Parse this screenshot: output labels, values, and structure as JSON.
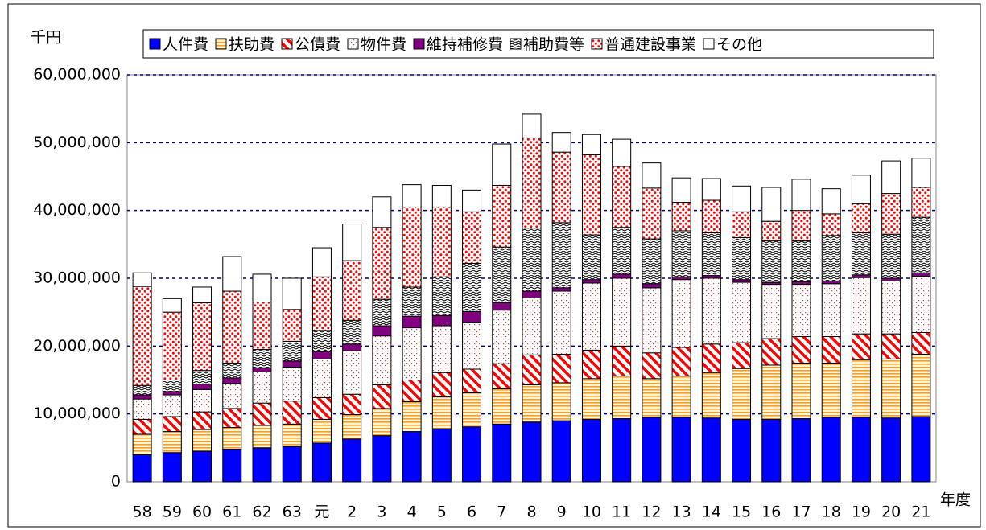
{
  "chart_data": {
    "type": "stacked-bar",
    "unit_label": "千円",
    "x_label": "年度",
    "categories": [
      "58",
      "59",
      "60",
      "61",
      "62",
      "63",
      "元",
      "2",
      "3",
      "4",
      "5",
      "6",
      "7",
      "8",
      "9",
      "10",
      "11",
      "12",
      "13",
      "14",
      "15",
      "16",
      "17",
      "18",
      "19",
      "20",
      "21"
    ],
    "ylim": [
      0,
      60000000
    ],
    "yticks": [
      {
        "value": 0,
        "label": "0"
      },
      {
        "value": 10000000,
        "label": "10,000,000"
      },
      {
        "value": 20000000,
        "label": "20,000,000"
      },
      {
        "value": 30000000,
        "label": "30,000,000"
      },
      {
        "value": 40000000,
        "label": "40,000,000"
      },
      {
        "value": 50000000,
        "label": "50,000,000"
      },
      {
        "value": 60000000,
        "label": "60,000,000"
      }
    ],
    "grid": true,
    "legend": "top",
    "series": [
      {
        "name": "人件費",
        "color": "#0000ff",
        "pattern": "solid",
        "values": [
          4000000,
          4300000,
          4500000,
          4800000,
          5000000,
          5200000,
          5700000,
          6300000,
          6800000,
          7400000,
          7800000,
          8100000,
          8500000,
          8800000,
          9000000,
          9200000,
          9300000,
          9500000,
          9500000,
          9400000,
          9200000,
          9200000,
          9300000,
          9500000,
          9500000,
          9400000,
          9600000
        ]
      },
      {
        "name": "扶助費",
        "color": "#f0a030",
        "pattern": "horizontal",
        "values": [
          3000000,
          3100000,
          3200000,
          3200000,
          3300000,
          3300000,
          3500000,
          3600000,
          4000000,
          4400000,
          4700000,
          5000000,
          5200000,
          5500000,
          5600000,
          6000000,
          6300000,
          5700000,
          6100000,
          6700000,
          7500000,
          8000000,
          8200000,
          8000000,
          8500000,
          8700000,
          9200000
        ]
      },
      {
        "name": "公債費",
        "color": "#ff0000",
        "pattern": "diagonal",
        "values": [
          2200000,
          2200000,
          2600000,
          2800000,
          3300000,
          3400000,
          3200000,
          3000000,
          3500000,
          3200000,
          3600000,
          3500000,
          3700000,
          4400000,
          4200000,
          4200000,
          4400000,
          3800000,
          4200000,
          4200000,
          3800000,
          3900000,
          3900000,
          3900000,
          3800000,
          3700000,
          3200000
        ]
      },
      {
        "name": "物件費",
        "color": "#c05050",
        "pattern": "sparse-dots",
        "values": [
          3000000,
          3200000,
          3300000,
          3700000,
          4600000,
          5000000,
          5700000,
          6400000,
          7200000,
          7700000,
          6900000,
          6900000,
          7900000,
          8400000,
          9300000,
          9900000,
          10000000,
          9600000,
          10000000,
          9700000,
          8900000,
          8000000,
          7700000,
          7800000,
          8300000,
          7800000,
          8300000
        ]
      },
      {
        "name": "維持補修費",
        "color": "#800080",
        "pattern": "solid",
        "values": [
          600000,
          500000,
          800000,
          800000,
          600000,
          900000,
          1100000,
          1000000,
          1500000,
          1700000,
          1500000,
          1600000,
          1100000,
          1000000,
          500000,
          500000,
          600000,
          600000,
          400000,
          400000,
          400000,
          300000,
          400000,
          400000,
          400000,
          400000,
          500000
        ]
      },
      {
        "name": "補助費等",
        "color": "#000000",
        "pattern": "zigzag",
        "values": [
          1400000,
          1700000,
          2000000,
          2200000,
          2700000,
          2900000,
          3100000,
          3500000,
          3900000,
          4300000,
          5700000,
          7100000,
          8200000,
          9300000,
          9600000,
          6600000,
          6900000,
          6600000,
          6800000,
          6300000,
          6200000,
          6100000,
          6000000,
          6700000,
          6200000,
          6500000,
          8200000
        ]
      },
      {
        "name": "普通建設事業",
        "color": "#ff0000",
        "pattern": "dense-dots",
        "values": [
          14600000,
          10000000,
          10000000,
          10600000,
          7000000,
          4700000,
          7900000,
          8800000,
          10600000,
          11800000,
          10300000,
          7600000,
          9100000,
          13300000,
          10400000,
          11800000,
          9000000,
          7500000,
          4200000,
          4800000,
          3800000,
          2900000,
          4500000,
          3200000,
          4300000,
          6000000,
          4400000
        ]
      },
      {
        "name": "その他",
        "color": "#ffffff",
        "pattern": "solid",
        "values": [
          2000000,
          2000000,
          2300000,
          5100000,
          4100000,
          4600000,
          4300000,
          5400000,
          4500000,
          3300000,
          3200000,
          3200000,
          6100000,
          3500000,
          2900000,
          3000000,
          4000000,
          3700000,
          3600000,
          3200000,
          3800000,
          5000000,
          4600000,
          3700000,
          4200000,
          4800000,
          4300000
        ]
      }
    ]
  }
}
